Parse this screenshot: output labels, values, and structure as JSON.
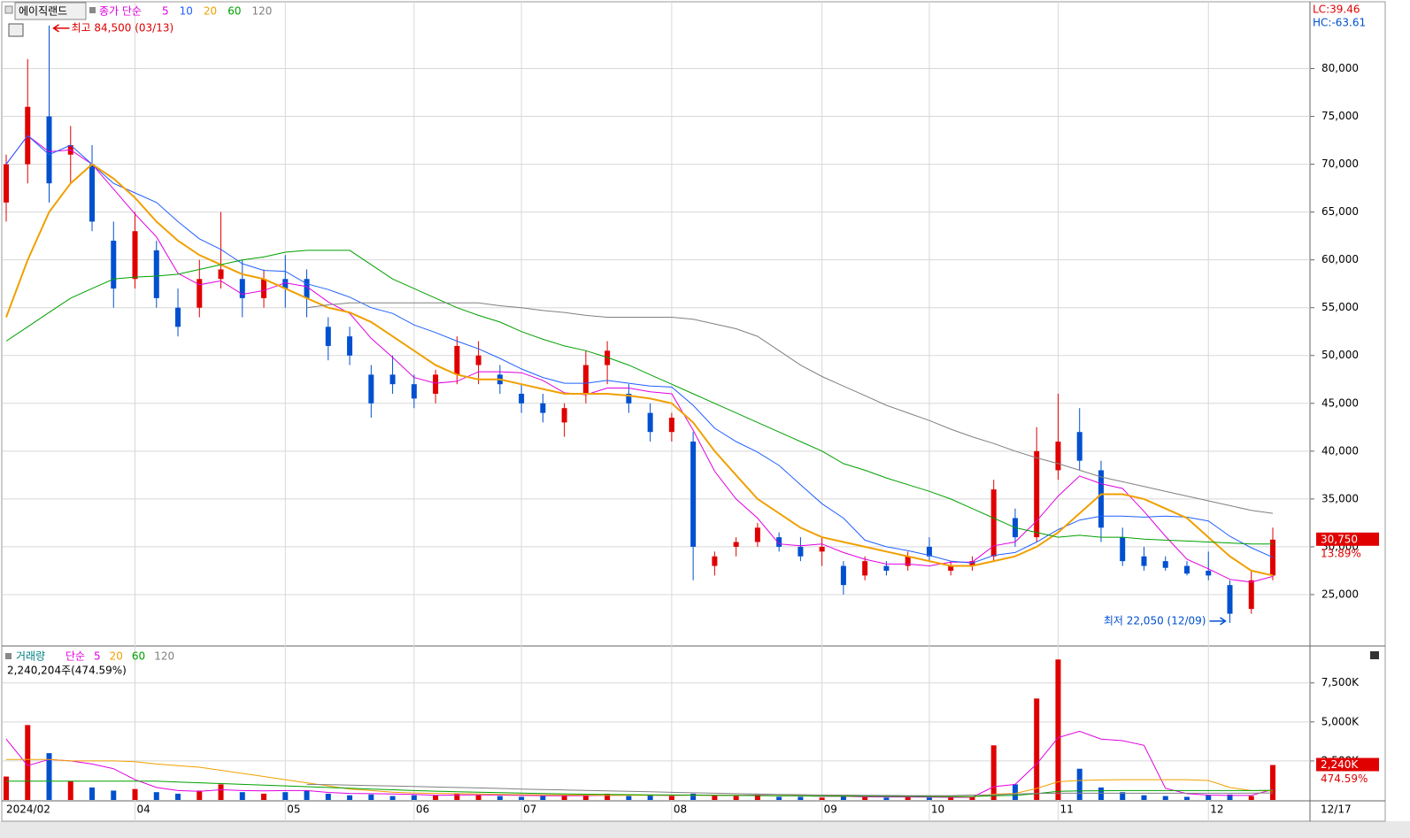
{
  "chart_data": [
    {
      "type": "candlestick",
      "name": "에이직랜드",
      "legend_prefix": "종가 단순",
      "categories": [
        "2024/02",
        null,
        null,
        null,
        null,
        null,
        "04",
        null,
        null,
        null,
        null,
        null,
        null,
        "05",
        null,
        null,
        null,
        null,
        null,
        "06",
        null,
        null,
        null,
        null,
        "07",
        null,
        null,
        null,
        null,
        null,
        null,
        "08",
        null,
        null,
        null,
        null,
        null,
        null,
        "09",
        null,
        null,
        null,
        null,
        "10",
        null,
        null,
        null,
        null,
        null,
        "11",
        null,
        null,
        null,
        null,
        null,
        null,
        "12",
        null,
        null,
        null
      ],
      "open": [
        66000,
        70000,
        75000,
        71000,
        70000,
        62000,
        58000,
        61000,
        55000,
        55000,
        58000,
        58000,
        56000,
        58000,
        58000,
        53000,
        52000,
        48000,
        48000,
        47000,
        46000,
        48000,
        49000,
        48000,
        46000,
        45000,
        43000,
        46000,
        49000,
        46000,
        44000,
        42000,
        41000,
        28000,
        30000,
        30500,
        31000,
        30000,
        29500,
        28000,
        27000,
        28000,
        28000,
        30000,
        27500,
        28000,
        29000,
        33000,
        31000,
        38000,
        42000,
        38000,
        31000,
        29000,
        28500,
        28000,
        27500,
        26000,
        23500,
        27000
      ],
      "high": [
        71000,
        81000,
        84500,
        74000,
        72000,
        64000,
        65000,
        62000,
        57000,
        60000,
        65000,
        60000,
        59000,
        60500,
        59000,
        54000,
        53000,
        49000,
        50000,
        48000,
        48500,
        52000,
        51500,
        49000,
        47000,
        46000,
        45000,
        50500,
        51500,
        47000,
        45000,
        44000,
        42000,
        29500,
        31000,
        32500,
        31500,
        31000,
        31000,
        28500,
        29000,
        28500,
        29500,
        31000,
        28500,
        29000,
        37000,
        34000,
        42500,
        46000,
        44500,
        39000,
        32000,
        30000,
        29000,
        28500,
        29500,
        26500,
        27500,
        32000
      ],
      "low": [
        64000,
        68000,
        66000,
        68000,
        63000,
        55000,
        57000,
        55000,
        52000,
        54000,
        57000,
        54000,
        55000,
        55000,
        54000,
        49500,
        49000,
        43500,
        46000,
        44500,
        45000,
        47000,
        47000,
        46000,
        44000,
        43000,
        41500,
        45000,
        47000,
        44000,
        41000,
        41000,
        26500,
        27000,
        29000,
        30000,
        29500,
        28500,
        28000,
        25000,
        26500,
        27000,
        27500,
        28500,
        27000,
        27500,
        28500,
        30000,
        30500,
        37000,
        38000,
        30500,
        28000,
        27500,
        27500,
        27000,
        26500,
        22050,
        23000,
        26500
      ],
      "close": [
        70000,
        76000,
        68000,
        72000,
        64000,
        57000,
        63000,
        56000,
        53000,
        58000,
        59000,
        56000,
        58000,
        57000,
        56000,
        51000,
        50000,
        45000,
        47000,
        45500,
        48000,
        51000,
        50000,
        47000,
        45000,
        44000,
        44500,
        49000,
        50500,
        45000,
        42000,
        43500,
        30000,
        29000,
        30500,
        32000,
        30000,
        29000,
        30000,
        26000,
        28500,
        27500,
        29000,
        29000,
        28000,
        28500,
        36000,
        31000,
        40000,
        41000,
        39000,
        32000,
        28500,
        28000,
        27800,
        27200,
        27000,
        23000,
        26500,
        30750
      ],
      "up_color": "#e00000",
      "down_color": "#0050d0",
      "series": [
        {
          "name": "5",
          "color": "#e000e0",
          "values": [
            70000,
            73000,
            71300,
            71500,
            70000,
            67400,
            64800,
            62400,
            58600,
            57400,
            57800,
            56400,
            56800,
            57600,
            57200,
            55600,
            54400,
            51800,
            49800,
            47700,
            47100,
            47300,
            48300,
            48300,
            48200,
            47400,
            46100,
            45900,
            46600,
            46600,
            46200,
            46000,
            42200,
            37900,
            35000,
            33000,
            30300,
            30100,
            30300,
            29400,
            28700,
            28200,
            28200,
            28000,
            28400,
            28400,
            30100,
            30500,
            32700,
            35300,
            37400,
            36600,
            36100,
            33700,
            31100,
            28700,
            27700,
            26600,
            26300,
            26900
          ]
        },
        {
          "name": "10",
          "color": "#2060ff",
          "values": [
            70000,
            73000,
            71000,
            72000,
            70000,
            68000,
            67000,
            66000,
            64000,
            62200,
            61100,
            59600,
            58900,
            58800,
            57500,
            56900,
            56100,
            55000,
            54400,
            53200,
            52400,
            51500,
            50700,
            49700,
            48600,
            47700,
            47100,
            47100,
            47400,
            47100,
            46800,
            46700,
            44800,
            42400,
            41000,
            39900,
            38500,
            36500,
            34500,
            33000,
            30700,
            30000,
            29600,
            29100,
            28500,
            28300,
            29100,
            29400,
            30500,
            31800,
            32800,
            33200,
            33200,
            33100,
            33200,
            33100,
            32700,
            31100,
            29900,
            28900
          ]
        },
        {
          "name": "20",
          "color": "#f0a000",
          "values": [
            54000,
            60000,
            65000,
            68000,
            70000,
            68500,
            66500,
            64000,
            62000,
            60500,
            59500,
            58500,
            58000,
            57000,
            56000,
            55000,
            54500,
            53500,
            52000,
            50500,
            49000,
            48000,
            47500,
            47500,
            47000,
            46500,
            46000,
            46000,
            46000,
            45800,
            45500,
            45000,
            43000,
            40000,
            37500,
            35000,
            33500,
            32000,
            31000,
            30500,
            30000,
            29500,
            29000,
            28500,
            28000,
            28000,
            28500,
            29000,
            30000,
            31500,
            33500,
            35500,
            35500,
            35000,
            34000,
            33000,
            31000,
            29000,
            27500,
            27000
          ]
        },
        {
          "name": "60",
          "color": "#00a000",
          "values": [
            51500,
            53000,
            54500,
            56000,
            57000,
            58000,
            58200,
            58300,
            58500,
            59000,
            59500,
            60000,
            60300,
            60800,
            61000,
            61000,
            61000,
            59500,
            58000,
            57000,
            56000,
            55000,
            54200,
            53500,
            52500,
            51700,
            51000,
            50500,
            49800,
            49000,
            48000,
            47000,
            46000,
            45000,
            44000,
            43000,
            42000,
            41000,
            40000,
            38700,
            38000,
            37200,
            36500,
            35800,
            35000,
            34000,
            33000,
            32000,
            31500,
            31000,
            31200,
            31000,
            31000,
            30800,
            30700,
            30600,
            30500,
            30400,
            30300,
            30300
          ]
        },
        {
          "name": "120",
          "color": "#808080",
          "values": [
            null,
            null,
            null,
            null,
            null,
            null,
            null,
            null,
            null,
            null,
            null,
            null,
            null,
            null,
            55000,
            55300,
            55500,
            55500,
            55500,
            55500,
            55500,
            55500,
            55500,
            55200,
            55000,
            54700,
            54500,
            54200,
            54000,
            54000,
            54000,
            54000,
            53800,
            53300,
            52800,
            52000,
            50500,
            49000,
            47800,
            46800,
            45800,
            44800,
            44000,
            43200,
            42300,
            41500,
            40800,
            40000,
            39300,
            38700,
            38000,
            37300,
            36800,
            36300,
            35800,
            35300,
            34800,
            34300,
            33800,
            33500
          ]
        }
      ],
      "ylim": [
        20000,
        86800
      ],
      "yticks": [
        {
          "value": 25000,
          "label": "25,000"
        },
        {
          "value": 30000,
          "label": "30,000"
        },
        {
          "value": 35000,
          "label": "35,000"
        },
        {
          "value": 40000,
          "label": "40,000"
        },
        {
          "value": 45000,
          "label": "45,000"
        },
        {
          "value": 50000,
          "label": "50,000"
        },
        {
          "value": 55000,
          "label": "55,000"
        },
        {
          "value": 60000,
          "label": "60,000"
        },
        {
          "value": 65000,
          "label": "65,000"
        },
        {
          "value": 70000,
          "label": "70,000"
        },
        {
          "value": 75000,
          "label": "75,000"
        },
        {
          "value": 80000,
          "label": "80,000"
        }
      ],
      "grid": true,
      "high_label": "최고 84,500 (03/13)",
      "low_label": "최저 22,050 (12/09)",
      "lc_label": "LC:39.46",
      "hc_label": "HC:-63.61",
      "last_price_label": "30,750",
      "change_label": "13.89%",
      "last_date_label": "12/17"
    },
    {
      "type": "bar",
      "title": "거래량",
      "legend_prefix": "단순",
      "values": [
        1500,
        4800,
        3000,
        1200,
        800,
        600,
        700,
        500,
        400,
        600,
        1000,
        500,
        400,
        500,
        600,
        400,
        300,
        350,
        250,
        300,
        300,
        400,
        300,
        250,
        200,
        250,
        300,
        350,
        400,
        250,
        300,
        250,
        400,
        300,
        250,
        350,
        200,
        200,
        150,
        250,
        200,
        150,
        200,
        150,
        150,
        200,
        3500,
        1000,
        6500,
        9000,
        2000,
        800,
        500,
        300,
        250,
        200,
        300,
        350,
        250,
        2240
      ],
      "series": [
        {
          "name": "5",
          "color": "#e000e0",
          "values": [
            3900,
            2200,
            2600,
            2500,
            2300,
            2000,
            1300,
            800,
            600,
            550,
            650,
            600,
            580,
            600,
            600,
            480,
            420,
            400,
            380,
            350,
            300,
            320,
            330,
            310,
            290,
            280,
            270,
            280,
            300,
            310,
            310,
            290,
            320,
            300,
            290,
            310,
            280,
            270,
            230,
            230,
            200,
            190,
            190,
            180,
            170,
            170,
            850,
            1000,
            2300,
            4000,
            4400,
            3900,
            3800,
            3500,
            750,
            400,
            310,
            290,
            290,
            670
          ]
        },
        {
          "name": "20",
          "color": "#f0a000",
          "values": [
            2600,
            2600,
            2600,
            2500,
            2500,
            2500,
            2450,
            2300,
            2200,
            2100,
            1900,
            1700,
            1500,
            1300,
            1100,
            900,
            700,
            600,
            500,
            450,
            420,
            400,
            380,
            360,
            340,
            330,
            320,
            310,
            300,
            300,
            300,
            300,
            300,
            300,
            290,
            290,
            280,
            270,
            260,
            250,
            250,
            240,
            230,
            220,
            210,
            200,
            370,
            420,
            740,
            1170,
            1250,
            1280,
            1300,
            1300,
            1300,
            1300,
            1250,
            800,
            600,
            580
          ]
        },
        {
          "name": "60",
          "color": "#00a000",
          "values": [
            1200,
            1200,
            1200,
            1200,
            1200,
            1200,
            1200,
            1200,
            1150,
            1100,
            1050,
            1000,
            950,
            900,
            850,
            800,
            750,
            700,
            650,
            600,
            560,
            530,
            500,
            470,
            440,
            410,
            390,
            370,
            350,
            340,
            330,
            320,
            310,
            300,
            290,
            280,
            270,
            260,
            250,
            240,
            240,
            230,
            230,
            220,
            220,
            220,
            270,
            290,
            400,
            550,
            580,
            590,
            600,
            600,
            600,
            600,
            600,
            600,
            600,
            620
          ]
        },
        {
          "name": "120",
          "color": "#808080",
          "values": [
            null,
            null,
            null,
            null,
            null,
            null,
            null,
            null,
            null,
            null,
            null,
            null,
            null,
            null,
            1000,
            980,
            950,
            920,
            890,
            860,
            830,
            800,
            770,
            740,
            700,
            670,
            640,
            610,
            580,
            550,
            520,
            490,
            460,
            430,
            400,
            380,
            360,
            340,
            320,
            310,
            300,
            290,
            280,
            280,
            280,
            320,
            330,
            380,
            420,
            430,
            430,
            430,
            430,
            430,
            430,
            430,
            430,
            430,
            440,
            450
          ]
        }
      ],
      "ylim": [
        0,
        9300
      ],
      "yticks": [
        {
          "value": 2500,
          "label": "2,500K"
        },
        {
          "value": 5000,
          "label": "5,000K"
        },
        {
          "value": 7500,
          "label": "7,500K"
        }
      ],
      "caption": "2,240,204주(474.59%)",
      "last_value_label": "2,240K",
      "ratio_label": "474.59%"
    }
  ]
}
